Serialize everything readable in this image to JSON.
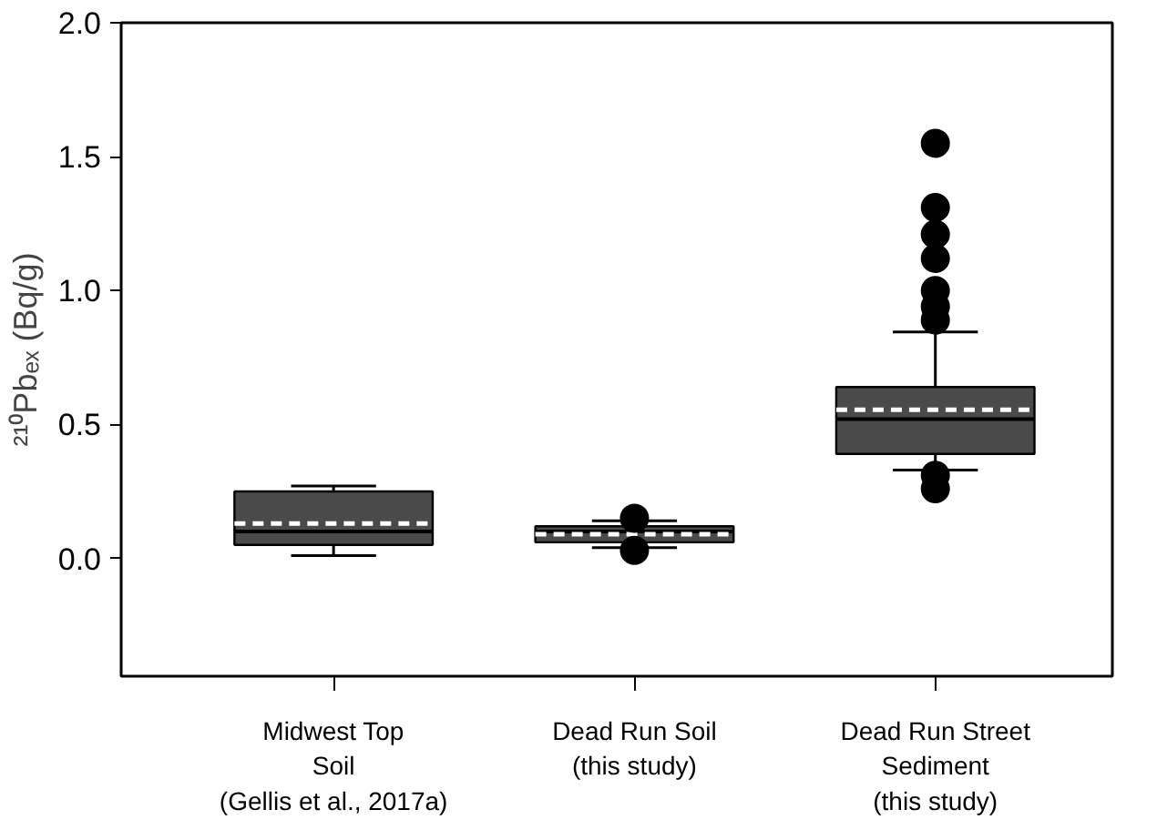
{
  "chart_data": {
    "type": "box",
    "ylabel": "²¹⁰Pbₑₓ (Bq/g)",
    "categories": [
      "Midwest Top\nSoil\n(Gellis et al., 2017a)",
      "Dead Run Soil\n(this study)",
      "Dead Run Street\nSediment\n(this study)"
    ],
    "color": "#4a4a4a",
    "boxes": [
      {
        "low": 0.01,
        "q1": 0.05,
        "median": 0.1,
        "q3": 0.25,
        "high": 0.27,
        "mean": 0.13
      },
      {
        "low": 0.04,
        "q1": 0.06,
        "median": 0.1,
        "q3": 0.12,
        "high": 0.14,
        "mean": 0.09,
        "outliers": [
          0.15,
          0.03
        ]
      },
      {
        "low": 0.33,
        "q1": 0.39,
        "median": 0.52,
        "q3": 0.64,
        "high": 0.845,
        "mean": 0.555,
        "outliers": [
          1.55,
          1.31,
          1.21,
          1.12,
          1.0,
          0.94,
          0.89,
          0.31,
          0.26
        ]
      }
    ],
    "ylim": [
      -0.44,
      2.0
    ],
    "yticks": [
      {
        "value": 0.0,
        "label": "0.0"
      },
      {
        "value": 0.5,
        "label": "0.5"
      },
      {
        "value": 1.0,
        "label": "1.0"
      },
      {
        "value": 1.5,
        "label": "1.5"
      },
      {
        "value": 2.0,
        "label": "2.0"
      }
    ]
  }
}
